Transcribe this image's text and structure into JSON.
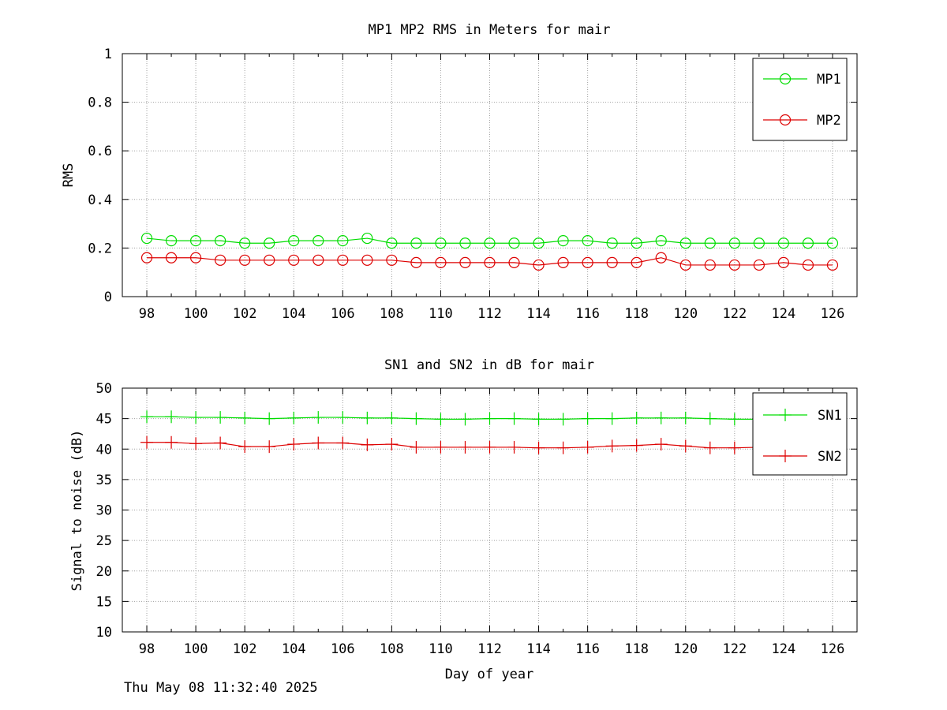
{
  "chart_data": [
    {
      "type": "line",
      "title": "MP1 MP2 RMS in Meters for mair",
      "xlabel": "",
      "ylabel": "RMS",
      "xlim": [
        97,
        127
      ],
      "ylim": [
        0,
        1
      ],
      "x_ticks": [
        98,
        100,
        102,
        104,
        106,
        108,
        110,
        112,
        114,
        116,
        118,
        120,
        122,
        124,
        126
      ],
      "x_minor_ticks": [
        99,
        101,
        103,
        105,
        107,
        109,
        111,
        113,
        115,
        117,
        119,
        121,
        123,
        125
      ],
      "y_ticks": [
        0,
        0.2,
        0.4,
        0.6,
        0.8,
        1
      ],
      "y_tick_labels": [
        "0",
        "0.2",
        "0.4",
        "0.6",
        "0.8",
        "1"
      ],
      "grid": true,
      "legend_position": "top-right",
      "marker": "circle",
      "x": [
        98,
        99,
        100,
        101,
        102,
        103,
        104,
        105,
        106,
        107,
        108,
        109,
        110,
        111,
        112,
        113,
        114,
        115,
        116,
        117,
        118,
        119,
        120,
        121,
        122,
        123,
        124,
        125,
        126
      ],
      "series": [
        {
          "name": "MP1",
          "color": "#00dd00",
          "values": [
            0.24,
            0.23,
            0.23,
            0.23,
            0.22,
            0.22,
            0.23,
            0.23,
            0.23,
            0.24,
            0.22,
            0.22,
            0.22,
            0.22,
            0.22,
            0.22,
            0.22,
            0.23,
            0.23,
            0.22,
            0.22,
            0.23,
            0.22,
            0.22,
            0.22,
            0.22,
            0.22,
            0.22,
            0.22
          ]
        },
        {
          "name": "MP2",
          "color": "#dd0000",
          "values": [
            0.16,
            0.16,
            0.16,
            0.15,
            0.15,
            0.15,
            0.15,
            0.15,
            0.15,
            0.15,
            0.15,
            0.14,
            0.14,
            0.14,
            0.14,
            0.14,
            0.13,
            0.14,
            0.14,
            0.14,
            0.14,
            0.16,
            0.13,
            0.13,
            0.13,
            0.13,
            0.14,
            0.13,
            0.13
          ]
        }
      ]
    },
    {
      "type": "line",
      "title": "SN1 and SN2 in dB for mair",
      "xlabel": "Day of year",
      "ylabel": "Signal to noise (dB)",
      "xlim": [
        97,
        127
      ],
      "ylim": [
        10,
        50
      ],
      "x_ticks": [
        98,
        100,
        102,
        104,
        106,
        108,
        110,
        112,
        114,
        116,
        118,
        120,
        122,
        124,
        126
      ],
      "x_minor_ticks": [
        99,
        101,
        103,
        105,
        107,
        109,
        111,
        113,
        115,
        117,
        119,
        121,
        123,
        125
      ],
      "y_ticks": [
        10,
        15,
        20,
        25,
        30,
        35,
        40,
        45,
        50
      ],
      "y_tick_labels": [
        "10",
        "15",
        "20",
        "25",
        "30",
        "35",
        "40",
        "45",
        "50"
      ],
      "grid": true,
      "legend_position": "top-right",
      "marker": "plus",
      "x": [
        98,
        99,
        100,
        101,
        102,
        103,
        104,
        105,
        106,
        107,
        108,
        109,
        110,
        111,
        112,
        113,
        114,
        115,
        116,
        117,
        118,
        119,
        120,
        121,
        122,
        123,
        124,
        125,
        126
      ],
      "series": [
        {
          "name": "SN1",
          "color": "#00dd00",
          "values": [
            45.3,
            45.3,
            45.2,
            45.2,
            45.1,
            45.0,
            45.1,
            45.2,
            45.2,
            45.1,
            45.1,
            45.0,
            44.9,
            44.9,
            45.0,
            45.0,
            44.9,
            44.9,
            45.0,
            45.0,
            45.1,
            45.1,
            45.1,
            45.0,
            44.9,
            44.9,
            45.0,
            45.0,
            45.0
          ]
        },
        {
          "name": "SN2",
          "color": "#dd0000",
          "values": [
            41.1,
            41.1,
            40.9,
            41.0,
            40.4,
            40.4,
            40.8,
            41.0,
            41.0,
            40.7,
            40.8,
            40.3,
            40.3,
            40.3,
            40.3,
            40.3,
            40.2,
            40.2,
            40.3,
            40.5,
            40.6,
            40.8,
            40.5,
            40.2,
            40.2,
            40.3,
            40.4,
            40.5,
            40.3
          ]
        }
      ]
    }
  ],
  "timestamp": "Thu May 08 11:32:40 2025"
}
